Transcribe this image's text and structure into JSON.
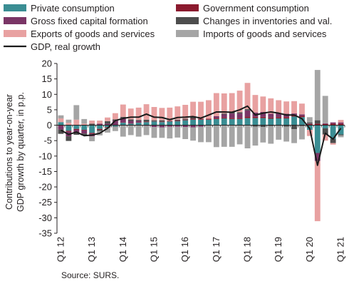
{
  "chart_data": {
    "type": "bar",
    "stacked": true,
    "ylabel": "Contributions to year-on-year GDP growth by quarter, in p.p.",
    "ylim": [
      -35,
      20
    ],
    "yticks": [
      20,
      15,
      10,
      5,
      0,
      -5,
      -10,
      -15,
      -20,
      -25,
      -30,
      -35
    ],
    "grid": false,
    "legend_position": "top",
    "source": "Source: SURS.",
    "x_tick_labels": [
      {
        "label": "Q1 12",
        "index": 0
      },
      {
        "label": "Q1 13",
        "index": 4
      },
      {
        "label": "Q1 14",
        "index": 8
      },
      {
        "label": "Q1 15",
        "index": 12
      },
      {
        "label": "Q1 16",
        "index": 16
      },
      {
        "label": "Q1 17",
        "index": 20
      },
      {
        "label": "Q1 18",
        "index": 24
      },
      {
        "label": "Q1 19",
        "index": 28
      },
      {
        "label": "Q1 20",
        "index": 32
      },
      {
        "label": "Q1 21",
        "index": 36
      }
    ],
    "categories": [
      "Q1 12",
      "Q2 12",
      "Q3 12",
      "Q4 12",
      "Q1 13",
      "Q2 13",
      "Q3 13",
      "Q4 13",
      "Q1 14",
      "Q2 14",
      "Q3 14",
      "Q4 14",
      "Q1 15",
      "Q2 15",
      "Q3 15",
      "Q4 15",
      "Q1 16",
      "Q2 16",
      "Q3 16",
      "Q4 16",
      "Q1 17",
      "Q2 17",
      "Q3 17",
      "Q4 17",
      "Q1 18",
      "Q2 18",
      "Q3 18",
      "Q4 18",
      "Q1 19",
      "Q2 19",
      "Q3 19",
      "Q4 19",
      "Q1 20",
      "Q2 20",
      "Q3 20",
      "Q4 20",
      "Q1 21"
    ],
    "series": [
      {
        "name": "Private consumption",
        "color": "#3a8d93",
        "values": [
          1.0,
          -1.8,
          -1.2,
          -1.5,
          -2.5,
          -1.2,
          -0.6,
          -0.5,
          0.8,
          0.5,
          0.8,
          1.0,
          1.2,
          1.0,
          1.2,
          1.3,
          1.6,
          1.8,
          1.8,
          1.8,
          2.0,
          2.2,
          2.0,
          2.0,
          2.3,
          2.3,
          2.3,
          2.1,
          2.2,
          2.2,
          2.8,
          2.6,
          -1.5,
          -9.0,
          -1.0,
          -4.5,
          -3.0
        ]
      },
      {
        "name": "Government consumption",
        "color": "#8b1a2e",
        "values": [
          -0.2,
          -0.3,
          -0.3,
          -0.2,
          -0.3,
          -0.3,
          -0.2,
          -0.1,
          0.1,
          0.1,
          0.1,
          0.2,
          0.1,
          0.2,
          0.2,
          0.2,
          0.2,
          0.3,
          0.3,
          0.3,
          0.3,
          0.3,
          0.3,
          0.3,
          0.5,
          0.4,
          0.4,
          0.4,
          0.4,
          0.4,
          0.4,
          0.4,
          0.4,
          0.5,
          0.4,
          0.5,
          0.5
        ]
      },
      {
        "name": "Gross fixed capital formation",
        "color": "#7a3566",
        "values": [
          -1.2,
          -1.5,
          -1.0,
          -1.0,
          -0.8,
          0.5,
          0.5,
          1.5,
          1.5,
          0.8,
          0.5,
          -0.2,
          -0.6,
          -0.7,
          -0.5,
          -0.5,
          -0.6,
          -0.7,
          -0.5,
          0.0,
          0.6,
          1.0,
          1.5,
          1.5,
          2.0,
          1.4,
          1.6,
          1.2,
          1.3,
          1.1,
          0.6,
          0.5,
          0.1,
          -2.6,
          0.2,
          0.4,
          0.4
        ]
      },
      {
        "name": "Changes in inventories and val.",
        "color": "#4d4d4d",
        "values": [
          -1.4,
          -1.5,
          -0.6,
          -0.6,
          0.5,
          -0.4,
          0.8,
          0.4,
          0.3,
          0.5,
          0.3,
          0.6,
          0.3,
          0.4,
          0.0,
          0.3,
          0.3,
          0.5,
          0.0,
          0.0,
          -0.1,
          0.3,
          0.6,
          0.4,
          0.4,
          -0.5,
          -0.6,
          -0.3,
          -0.2,
          -0.5,
          -1.3,
          -0.3,
          0.4,
          1.1,
          -2.0,
          -1.3,
          -0.3
        ]
      },
      {
        "name": "Exports of goods and services",
        "color": "#e8a1a1",
        "values": [
          1.2,
          0.8,
          1.8,
          0.5,
          1.0,
          1.0,
          1.2,
          2.0,
          4.0,
          3.5,
          4.0,
          5.0,
          4.3,
          4.0,
          4.3,
          4.3,
          4.5,
          5.0,
          5.5,
          6.0,
          7.5,
          6.5,
          6.0,
          7.0,
          8.5,
          5.7,
          5.0,
          5.0,
          4.2,
          4.0,
          4.0,
          3.5,
          -2.0,
          -19.5,
          -2.0,
          -0.5,
          0.8
        ]
      },
      {
        "name": "Imports of goods and services",
        "color": "#a5a5a5",
        "values": [
          1.0,
          1.0,
          4.7,
          1.5,
          -1.6,
          -1.4,
          -1.6,
          -1.3,
          -3.7,
          -3.2,
          -3.7,
          -3.0,
          -3.5,
          -3.4,
          -3.8,
          -3.5,
          -3.9,
          -4.3,
          -5.0,
          -5.5,
          -7.0,
          -7.0,
          -7.0,
          -6.2,
          -7.5,
          -6.1,
          -5.0,
          -5.7,
          -4.5,
          -4.8,
          -4.5,
          -4.3,
          1.7,
          16.3,
          8.9,
          0.0,
          -0.6
        ]
      }
    ],
    "line_series": {
      "name": "GDP, real growth",
      "color": "#1a1a1a",
      "values": [
        -1.6,
        -3.0,
        -2.2,
        -3.4,
        -3.2,
        -2.6,
        -1.0,
        1.5,
        2.2,
        2.6,
        2.6,
        3.6,
        2.6,
        2.5,
        1.8,
        2.5,
        2.6,
        2.8,
        2.3,
        3.3,
        4.3,
        4.3,
        4.2,
        5.0,
        6.2,
        3.3,
        3.9,
        4.3,
        3.9,
        3.3,
        3.3,
        2.1,
        -1.1,
        -13.0,
        -2.6,
        -4.5,
        -1.0
      ]
    }
  }
}
